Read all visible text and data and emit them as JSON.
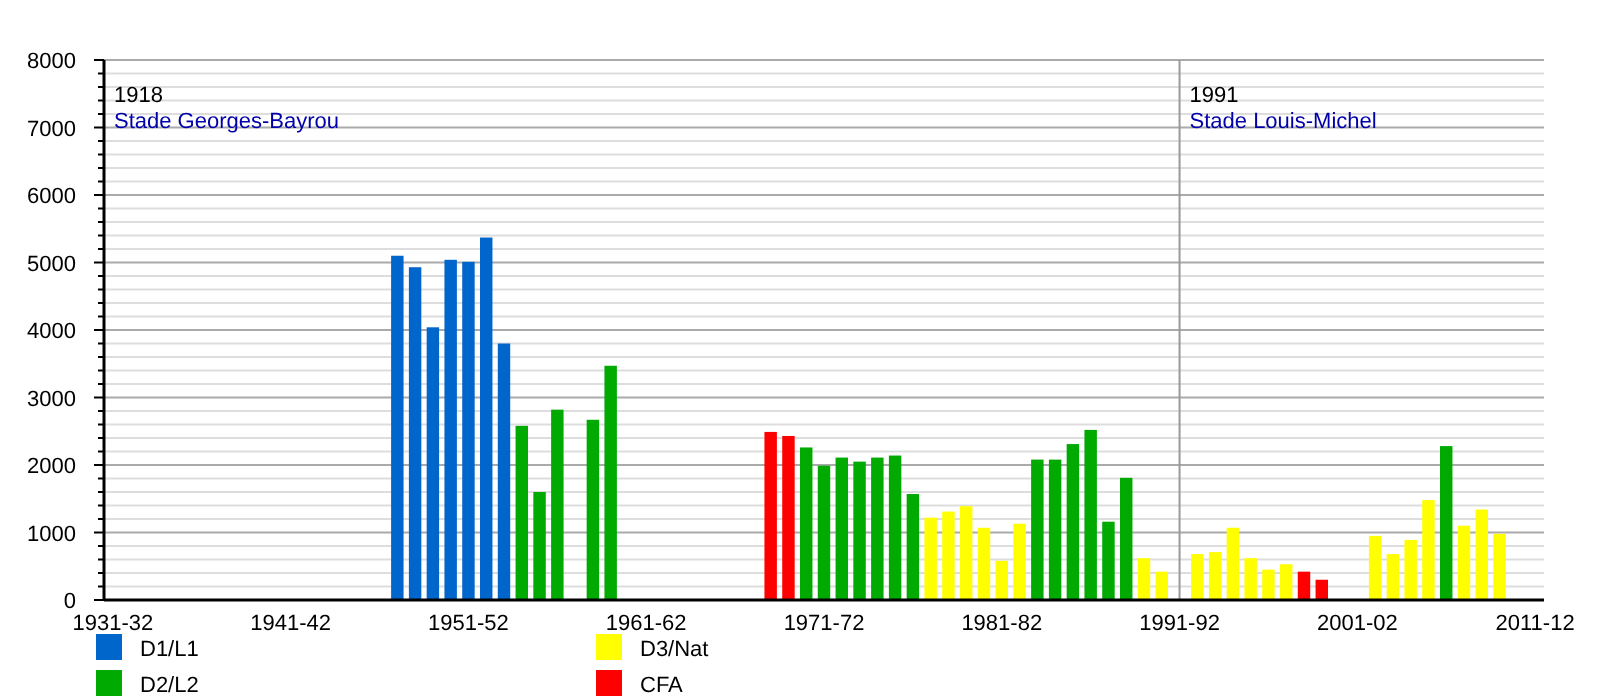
{
  "chart_data": {
    "type": "bar",
    "stacked": true,
    "categories": [
      "1931-32",
      null,
      null,
      null,
      null,
      null,
      null,
      null,
      null,
      null,
      "1941-42",
      null,
      null,
      null,
      null,
      null,
      null,
      null,
      null,
      null,
      "1951-52",
      null,
      null,
      null,
      null,
      null,
      null,
      null,
      null,
      null,
      "1961-62",
      null,
      null,
      null,
      null,
      null,
      null,
      null,
      null,
      null,
      "1971-72",
      null,
      null,
      null,
      null,
      null,
      null,
      null,
      null,
      null,
      "1981-82",
      null,
      null,
      null,
      null,
      null,
      null,
      null,
      null,
      null,
      "1991-92",
      null,
      null,
      null,
      null,
      null,
      null,
      null,
      null,
      null,
      "2001-02",
      null,
      null,
      null,
      null,
      null,
      null,
      null,
      null,
      null,
      "2011-12"
    ],
    "series": [
      {
        "name": "D1/L1",
        "color": "#0066cc",
        "values": [
          null,
          null,
          null,
          null,
          null,
          null,
          null,
          null,
          null,
          null,
          null,
          null,
          null,
          null,
          null,
          null,
          5100,
          4930,
          4040,
          5040,
          5010,
          5370,
          3800,
          null,
          null,
          null,
          null,
          null,
          null,
          null,
          null,
          null,
          null,
          null,
          null,
          null,
          null,
          null,
          null,
          null,
          null,
          null,
          null,
          null,
          null,
          null,
          null,
          null,
          null,
          null,
          null,
          null,
          null,
          null,
          null,
          null,
          null,
          null,
          null,
          null,
          null,
          null,
          null,
          null,
          null,
          null,
          null,
          null,
          null,
          null,
          null,
          null,
          null,
          null,
          null,
          null,
          null,
          null,
          null,
          null,
          null
        ]
      },
      {
        "name": "D2/L2",
        "color": "#00aa00",
        "values": [
          null,
          null,
          null,
          null,
          null,
          null,
          null,
          null,
          null,
          null,
          null,
          null,
          null,
          null,
          null,
          null,
          null,
          null,
          null,
          null,
          null,
          null,
          null,
          2580,
          1600,
          2820,
          null,
          2670,
          3470,
          null,
          null,
          null,
          null,
          null,
          null,
          null,
          null,
          null,
          null,
          2260,
          1990,
          2110,
          2050,
          2110,
          2140,
          1570,
          null,
          null,
          null,
          null,
          null,
          null,
          2080,
          2080,
          2310,
          2520,
          1160,
          1810,
          null,
          null,
          null,
          null,
          null,
          null,
          null,
          null,
          null,
          null,
          null,
          null,
          null,
          null,
          null,
          null,
          null,
          2280,
          null,
          null,
          null,
          null,
          null
        ]
      },
      {
        "name": "D3/Nat",
        "color": "#ffff00",
        "values": [
          null,
          null,
          null,
          null,
          null,
          null,
          null,
          null,
          null,
          null,
          null,
          null,
          null,
          null,
          null,
          null,
          null,
          null,
          null,
          null,
          null,
          null,
          null,
          null,
          null,
          null,
          null,
          null,
          null,
          null,
          null,
          null,
          null,
          null,
          null,
          null,
          null,
          null,
          null,
          null,
          null,
          null,
          null,
          null,
          null,
          null,
          1220,
          1310,
          1390,
          1070,
          580,
          1130,
          null,
          null,
          null,
          null,
          null,
          null,
          620,
          420,
          null,
          680,
          710,
          1070,
          620,
          450,
          530,
          null,
          null,
          null,
          null,
          950,
          680,
          890,
          1480,
          null,
          1100,
          1340,
          980,
          null,
          null
        ]
      },
      {
        "name": "CFA",
        "color": "#ff0000",
        "values": [
          null,
          null,
          null,
          null,
          null,
          null,
          null,
          null,
          null,
          null,
          null,
          null,
          null,
          null,
          null,
          null,
          null,
          null,
          null,
          null,
          null,
          null,
          null,
          null,
          null,
          null,
          null,
          null,
          null,
          null,
          null,
          null,
          null,
          null,
          null,
          null,
          null,
          2490,
          2430,
          null,
          null,
          null,
          null,
          null,
          null,
          null,
          null,
          null,
          null,
          null,
          null,
          null,
          null,
          null,
          null,
          null,
          null,
          null,
          null,
          null,
          null,
          null,
          null,
          null,
          null,
          null,
          null,
          420,
          300,
          null,
          null,
          null,
          null,
          null,
          null,
          null,
          null,
          null,
          null,
          null,
          null
        ]
      }
    ],
    "ylim": [
      0,
      8000
    ],
    "yticks": [
      0,
      {
        "value": 200,
        "label": null
      },
      {
        "value": 400,
        "label": null
      },
      {
        "value": 600,
        "label": null
      },
      {
        "value": 800,
        "label": null
      },
      1000,
      {
        "value": 1200,
        "label": null
      },
      {
        "value": 1400,
        "label": null
      },
      {
        "value": 1600,
        "label": null
      },
      {
        "value": 1800,
        "label": null
      },
      2000,
      {
        "value": 2200,
        "label": null
      },
      {
        "value": 2400,
        "label": null
      },
      {
        "value": 2600,
        "label": null
      },
      {
        "value": 2800,
        "label": null
      },
      3000,
      {
        "value": 3200,
        "label": null
      },
      {
        "value": 3400,
        "label": null
      },
      {
        "value": 3600,
        "label": null
      },
      {
        "value": 3800,
        "label": null
      },
      4000,
      {
        "value": 4200,
        "label": null
      },
      {
        "value": 4400,
        "label": null
      },
      {
        "value": 4600,
        "label": null
      },
      {
        "value": 4800,
        "label": null
      },
      5000,
      {
        "value": 5200,
        "label": null
      },
      {
        "value": 5400,
        "label": null
      },
      {
        "value": 5600,
        "label": null
      },
      {
        "value": 5800,
        "label": null
      },
      6000,
      {
        "value": 6200,
        "label": null
      },
      {
        "value": 6400,
        "label": null
      },
      {
        "value": 6600,
        "label": null
      },
      {
        "value": 6800,
        "label": null
      },
      7000,
      {
        "value": 7200,
        "label": null
      },
      {
        "value": 7400,
        "label": null
      },
      {
        "value": 7600,
        "label": null
      },
      {
        "value": 7800,
        "label": null
      },
      8000
    ],
    "grid": "y",
    "legend": "bottom",
    "ref_lines": [
      {
        "axis": "x",
        "value": "1991-92",
        "label": "1991\nStade Louis-Michel",
        "color": "#999999"
      }
    ],
    "annotations": [
      "1918\nStade Georges-Bayrou"
    ]
  }
}
